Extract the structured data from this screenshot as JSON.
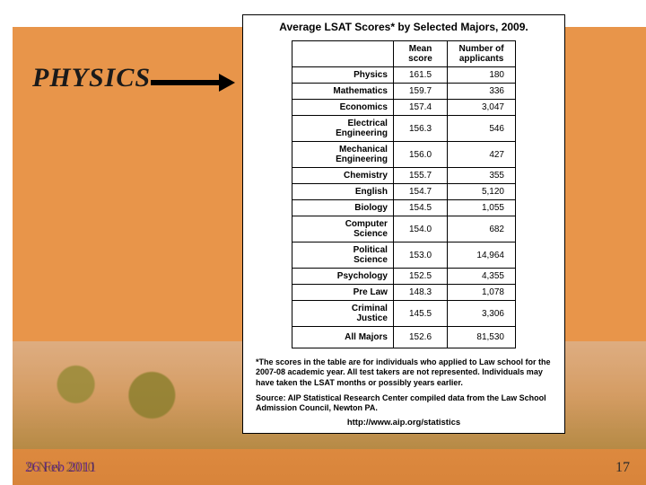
{
  "heading": "PHYSICS",
  "table": {
    "title": "Average LSAT Scores* by Selected Majors, 2009.",
    "columns": [
      "",
      "Mean score",
      "Number of applicants"
    ],
    "rows": [
      {
        "major": "Physics",
        "score": "161.5",
        "num": "180"
      },
      {
        "major": "Mathematics",
        "score": "159.7",
        "num": "336"
      },
      {
        "major": "Economics",
        "score": "157.4",
        "num": "3,047"
      },
      {
        "major": "Electrical Engineering",
        "score": "156.3",
        "num": "546"
      },
      {
        "major": "Mechanical Engineering",
        "score": "156.0",
        "num": "427"
      },
      {
        "major": "Chemistry",
        "score": "155.7",
        "num": "355"
      },
      {
        "major": "English",
        "score": "154.7",
        "num": "5,120"
      },
      {
        "major": "Biology",
        "score": "154.5",
        "num": "1,055"
      },
      {
        "major": "Computer Science",
        "score": "154.0",
        "num": "682"
      },
      {
        "major": "Political Science",
        "score": "153.0",
        "num": "14,964"
      },
      {
        "major": "Psychology",
        "score": "152.5",
        "num": "4,355"
      },
      {
        "major": "Pre Law",
        "score": "148.3",
        "num": "1,078"
      },
      {
        "major": "Criminal Justice",
        "score": "145.5",
        "num": "3,306"
      }
    ],
    "all_row": {
      "major": "All Majors",
      "score": "152.6",
      "num": "81,530"
    },
    "footnote": "*The scores in the table are for individuals who applied to Law school for the 2007-08 academic year. All test takers are not represented. Individuals may have taken the LSAT months or possibly years earlier.",
    "source": "Source: AIP Statistical Research Center compiled data from the Law School Admission Council, Newton PA.",
    "url": "http://www.aip.org/statistics"
  },
  "footer": {
    "date_primary": "26 Feb 2011",
    "date_ghost": "9 Nov 2010",
    "page": "17"
  },
  "colors": {
    "slide_bg": "#e8954a",
    "panel_bg": "#ffffff",
    "text": "#000000",
    "date_color": "#6a2a8a"
  }
}
